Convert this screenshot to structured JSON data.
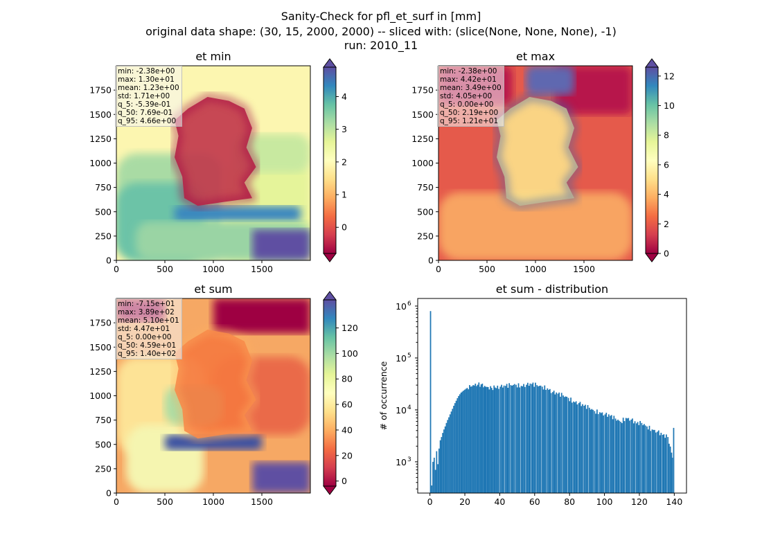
{
  "figure": {
    "title_lines": [
      "Sanity-Check for pfl_et_surf in [mm]",
      "original data shape: (30, 15, 2000, 2000) -- sliced with: (slice(None, None, None), -1)",
      "run: 2010_11"
    ],
    "colormap": "Spectral",
    "colormap_stops": [
      "#9e0142",
      "#d53e4f",
      "#f46d43",
      "#fdae61",
      "#fee08b",
      "#ffffbf",
      "#e6f598",
      "#abdda4",
      "#66c2a5",
      "#3288bd",
      "#5e4fa2"
    ]
  },
  "chart_data": [
    {
      "type": "heatmap",
      "title": "et min",
      "xlim": [
        0,
        2000
      ],
      "ylim": [
        0,
        2000
      ],
      "xticks": [
        0,
        500,
        1000,
        1500
      ],
      "yticks": [
        0,
        250,
        500,
        750,
        1000,
        1250,
        1500,
        1750
      ],
      "colorbar": {
        "range": [
          -0.8,
          4.9
        ],
        "ticks": [
          0,
          1,
          2,
          3,
          4
        ],
        "extend": "both"
      },
      "stats": [
        "min: -2.38e+00",
        "max: 1.30e+01",
        "mean: 1.23e+00",
        "std: 1.71e+00",
        "q_5: -5.39e-01",
        "q_50: 7.69e-01",
        "q_95: 4.66e+00"
      ]
    },
    {
      "type": "heatmap",
      "title": "et max",
      "xlim": [
        0,
        2000
      ],
      "ylim": [
        0,
        2000
      ],
      "xticks": [
        0,
        500,
        1000,
        1500
      ],
      "yticks": [
        0,
        250,
        500,
        750,
        1000,
        1250,
        1500,
        1750
      ],
      "colorbar": {
        "range": [
          0,
          12.6
        ],
        "ticks": [
          0,
          2,
          4,
          6,
          8,
          10,
          12
        ],
        "extend": "both"
      },
      "stats": [
        "min: -2.38e+00",
        "max: 4.42e+01",
        "mean: 3.49e+00",
        "std: 4.05e+00",
        "q_5: 0.00e+00",
        "q_50: 2.19e+00",
        "q_95: 1.21e+01"
      ]
    },
    {
      "type": "heatmap",
      "title": "et sum",
      "xlim": [
        0,
        2000
      ],
      "ylim": [
        0,
        2000
      ],
      "xticks": [
        0,
        500,
        1000,
        1500
      ],
      "yticks": [
        0,
        250,
        500,
        750,
        1000,
        1250,
        1500,
        1750
      ],
      "colorbar": {
        "range": [
          -4,
          142
        ],
        "ticks": [
          0,
          20,
          40,
          60,
          80,
          100,
          120
        ],
        "extend": "both"
      },
      "stats": [
        "min: -7.15e+01",
        "max: 3.89e+02",
        "mean: 5.10e+01",
        "std: 4.47e+01",
        "q_5: 0.00e+00",
        "q_50: 4.59e+01",
        "q_95: 1.40e+02"
      ]
    },
    {
      "type": "bar",
      "title": "et sum - distribution",
      "ylabel": "# of occurrence",
      "xlabel": "",
      "yscale": "log",
      "xlim": [
        -7,
        147
      ],
      "ylim": [
        250,
        1400000
      ],
      "xticks": [
        0,
        20,
        40,
        60,
        80,
        100,
        120,
        140
      ],
      "ytick_labels": [
        {
          "value": 1000,
          "base": "10",
          "exp": "3"
        },
        {
          "value": 10000,
          "base": "10",
          "exp": "4"
        },
        {
          "value": 100000,
          "base": "10",
          "exp": "5"
        },
        {
          "value": 1000000,
          "base": "10",
          "exp": "6"
        }
      ],
      "color": "#1f77b4",
      "bin_width": 0.7,
      "series": [
        {
          "x": [
            0,
            0.7,
            1.4,
            2.1,
            2.8,
            3.5,
            4.2,
            4.9,
            5.6,
            6.3,
            7.0,
            7.7,
            8.4,
            9.1,
            9.8,
            10.5,
            11.2,
            11.9,
            12.6,
            13.3,
            14.0,
            14.7,
            15.4,
            16.1,
            16.8,
            17.5,
            18.2,
            18.9,
            19.6,
            20.3,
            21,
            23,
            25,
            27,
            29,
            31,
            33,
            35,
            37,
            40,
            43,
            46,
            49,
            52,
            55,
            58,
            61,
            64,
            67,
            70,
            73,
            76,
            79,
            82,
            85,
            88,
            91,
            94,
            97,
            100,
            103,
            106,
            109,
            112,
            115,
            118,
            121,
            124,
            127,
            130,
            133,
            136,
            138.5,
            139.3
          ],
          "values": [
            800000,
            350,
            1000,
            1200,
            700,
            1600,
            900,
            1800,
            2600,
            3000,
            3600,
            4200,
            4800,
            5600,
            6400,
            7200,
            8200,
            9300,
            10500,
            12000,
            13500,
            15000,
            16800,
            18500,
            20000,
            21500,
            22500,
            23500,
            24500,
            25500,
            26500,
            28000,
            29500,
            30500,
            31000,
            29000,
            27500,
            26500,
            27000,
            28000,
            29000,
            30000,
            30500,
            29000,
            30500,
            31500,
            30000,
            28000,
            26000,
            22000,
            20500,
            19000,
            17000,
            14500,
            13500,
            12000,
            11000,
            9500,
            9000,
            8200,
            7700,
            6800,
            5900,
            7000,
            6500,
            5500,
            5600,
            4800,
            4200,
            3800,
            3300,
            3000,
            1200,
            4500
          ]
        }
      ]
    }
  ]
}
